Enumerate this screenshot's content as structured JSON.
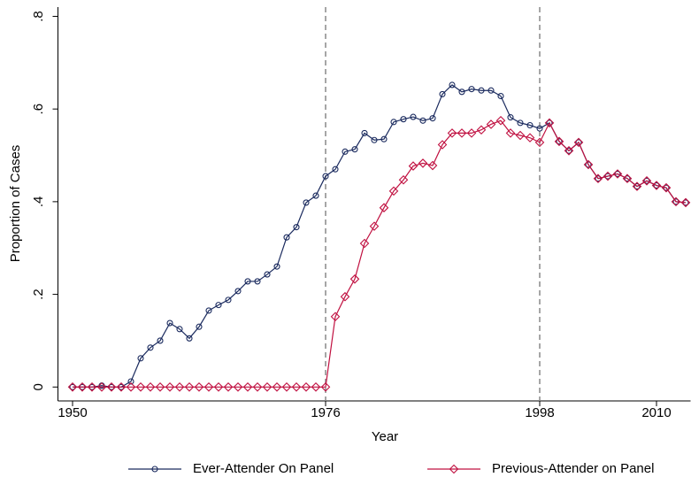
{
  "chart_data": {
    "type": "line",
    "x_label": "Year",
    "y_label": "Proportion of Cases",
    "x": [
      1950,
      1951,
      1952,
      1953,
      1954,
      1955,
      1956,
      1957,
      1958,
      1959,
      1960,
      1961,
      1962,
      1963,
      1964,
      1965,
      1966,
      1967,
      1968,
      1969,
      1970,
      1971,
      1972,
      1973,
      1974,
      1975,
      1976,
      1977,
      1978,
      1979,
      1980,
      1981,
      1982,
      1983,
      1984,
      1985,
      1986,
      1987,
      1988,
      1989,
      1990,
      1991,
      1992,
      1993,
      1994,
      1995,
      1996,
      1997,
      1998,
      1999,
      2000,
      2001,
      2002,
      2003,
      2004,
      2005,
      2006,
      2007,
      2008,
      2009,
      2010,
      2011,
      2012,
      2013
    ],
    "series": [
      {
        "name": "Ever-Attender On Panel",
        "color": "#1a2a5e",
        "marker": "circle",
        "values": [
          0,
          0,
          0,
          0.003,
          0,
          0,
          0.012,
          0.062,
          0.085,
          0.1,
          0.138,
          0.125,
          0.105,
          0.13,
          0.165,
          0.177,
          0.188,
          0.207,
          0.228,
          0.228,
          0.243,
          0.26,
          0.323,
          0.345,
          0.398,
          0.413,
          0.455,
          0.47,
          0.508,
          0.513,
          0.548,
          0.533,
          0.535,
          0.572,
          0.578,
          0.583,
          0.575,
          0.58,
          0.632,
          0.652,
          0.637,
          0.643,
          0.64,
          0.64,
          0.628,
          0.582,
          0.57,
          0.565,
          0.558,
          0.57,
          0.53,
          0.51,
          0.528,
          0.48,
          0.45,
          0.455,
          0.46,
          0.45,
          0.433,
          0.445,
          0.435,
          0.43,
          0.4,
          0.398
        ]
      },
      {
        "name": "Previous-Attender on Panel",
        "color": "#c01040",
        "marker": "diamond",
        "values": [
          0,
          0,
          0,
          0,
          0,
          0,
          0,
          0,
          0,
          0,
          0,
          0,
          0,
          0,
          0,
          0,
          0,
          0,
          0,
          0,
          0,
          0,
          0,
          0,
          0,
          0,
          0,
          0.152,
          0.195,
          0.233,
          0.31,
          0.347,
          0.387,
          0.423,
          0.447,
          0.477,
          0.483,
          0.478,
          0.523,
          0.548,
          0.548,
          0.548,
          0.555,
          0.567,
          0.575,
          0.548,
          0.543,
          0.538,
          0.528,
          0.57,
          0.53,
          0.51,
          0.528,
          0.48,
          0.45,
          0.455,
          0.46,
          0.45,
          0.433,
          0.445,
          0.435,
          0.43,
          0.4,
          0.398
        ]
      }
    ],
    "xlim": [
      1948.5,
      2013.5
    ],
    "xticks": [
      1950,
      1976,
      1998,
      2010
    ],
    "ylim": [
      -0.03,
      0.82
    ],
    "yticks": [
      {
        "value": 0,
        "label": "0"
      },
      {
        "value": 0.2,
        "label": ".2"
      },
      {
        "value": 0.4,
        "label": ".4"
      },
      {
        "value": 0.6,
        "label": ".6"
      },
      {
        "value": 0.8,
        "label": ".8"
      }
    ],
    "vlines": [
      1976,
      1998
    ],
    "grid": false,
    "legend": "bottom"
  }
}
